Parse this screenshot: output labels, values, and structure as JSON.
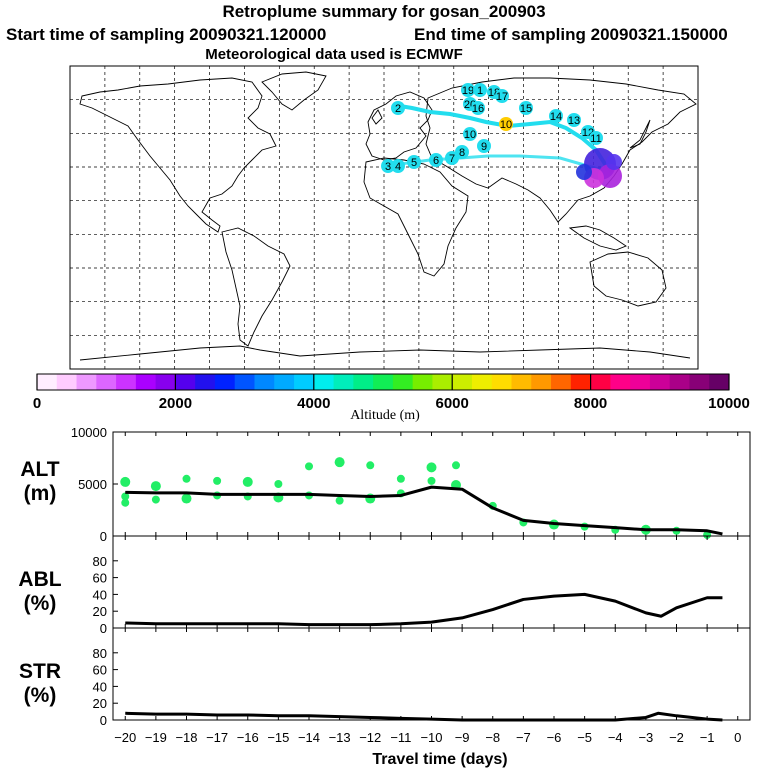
{
  "header": {
    "title": "Retroplume summary for gosan_200903",
    "start_label": "Start time of sampling 20090321.120000",
    "end_label": "End time of sampling 20090321.150000",
    "met_label": "Meteorological data used is ECMWF"
  },
  "colorbar": {
    "xlabel": "Altitude (m)",
    "ticks": [
      "0",
      "2000",
      "4000",
      "6000",
      "8000",
      "10000"
    ],
    "range": [
      0,
      10000
    ]
  },
  "map_labels": [
    "20",
    "19",
    "18",
    "17",
    "16",
    "15",
    "14",
    "13",
    "12",
    "11",
    "10",
    "9",
    "8",
    "7",
    "6",
    "5",
    "4",
    "3",
    "2",
    "1"
  ],
  "chart_data": [
    {
      "type": "line",
      "title": "ALT (m)",
      "ylabel_line1": "ALT",
      "ylabel_line2": "(m)",
      "ylim": [
        0,
        10000
      ],
      "yticks": [
        "10000",
        "5000",
        "0"
      ],
      "x": [
        -20,
        -19,
        -18,
        -17,
        -16,
        -15,
        -14,
        -13,
        -12,
        -11,
        -10,
        -9,
        -8,
        -7,
        -6,
        -5,
        -4,
        -3,
        -2,
        -1,
        -0.5
      ],
      "values": [
        4200,
        4150,
        4150,
        4000,
        4000,
        4000,
        4000,
        3900,
        3800,
        3900,
        4700,
        4500,
        2700,
        1500,
        1200,
        1000,
        800,
        600,
        600,
        500,
        200
      ],
      "scatter_x": [
        -20,
        -20,
        -20,
        -19,
        -19,
        -18,
        -18,
        -17,
        -17,
        -16,
        -16,
        -15,
        -15,
        -14,
        -14,
        -13,
        -13,
        -12,
        -12,
        -11,
        -11,
        -10,
        -10,
        -9.2,
        -9.2,
        -8,
        -7,
        -6,
        -5,
        -4,
        -3,
        -2,
        -1
      ],
      "scatter_y": [
        5200,
        3800,
        3200,
        4800,
        3500,
        5500,
        3600,
        5300,
        3900,
        5200,
        3800,
        5000,
        3700,
        6700,
        3900,
        7100,
        3400,
        6800,
        3600,
        5500,
        4100,
        6600,
        5300,
        6800,
        4900,
        2900,
        1300,
        1100,
        900,
        600,
        600,
        500,
        100
      ]
    },
    {
      "type": "line",
      "title": "ABL (%)",
      "ylabel_line1": "ABL",
      "ylabel_line2": "(%)",
      "ylim": [
        0,
        100
      ],
      "yticks": [
        "80",
        "60",
        "40",
        "20",
        "0"
      ],
      "x": [
        -20,
        -19,
        -18,
        -17,
        -16,
        -15,
        -14,
        -13,
        -12,
        -11,
        -10,
        -9,
        -8,
        -7,
        -6,
        -5,
        -4,
        -3,
        -2.5,
        -2,
        -1,
        -0.5
      ],
      "values": [
        6,
        5,
        5,
        5,
        5,
        5,
        4,
        4,
        4,
        5,
        7,
        12,
        22,
        34,
        38,
        40,
        32,
        18,
        14,
        24,
        36,
        36
      ]
    },
    {
      "type": "line",
      "title": "STR (%)",
      "ylabel_line1": "STR",
      "ylabel_line2": "(%)",
      "ylim": [
        0,
        100
      ],
      "yticks": [
        "80",
        "60",
        "40",
        "20",
        "0"
      ],
      "x": [
        -20,
        -19,
        -18,
        -17,
        -16,
        -15,
        -14,
        -13,
        -12,
        -11,
        -10,
        -9,
        -8,
        -7,
        -6,
        -5,
        -4,
        -3,
        -2.6,
        -2,
        -1,
        -0.5
      ],
      "values": [
        8,
        7,
        7,
        6,
        6,
        5,
        5,
        4,
        3,
        2,
        1,
        0,
        0,
        0,
        0,
        0,
        0,
        3,
        8,
        5,
        1,
        0
      ],
      "xlabel": "Travel time (days)",
      "xticks": [
        "−20",
        "−19",
        "−18",
        "−17",
        "−16",
        "−15",
        "−14",
        "−13",
        "−12",
        "−11",
        "−10",
        "−9",
        "−8",
        "−7",
        "−6",
        "−5",
        "−4",
        "−3",
        "−2",
        "−1",
        "0"
      ]
    }
  ],
  "colors": {
    "line": "#000000",
    "marker": "#22ee66",
    "plume": "#22ddee"
  }
}
